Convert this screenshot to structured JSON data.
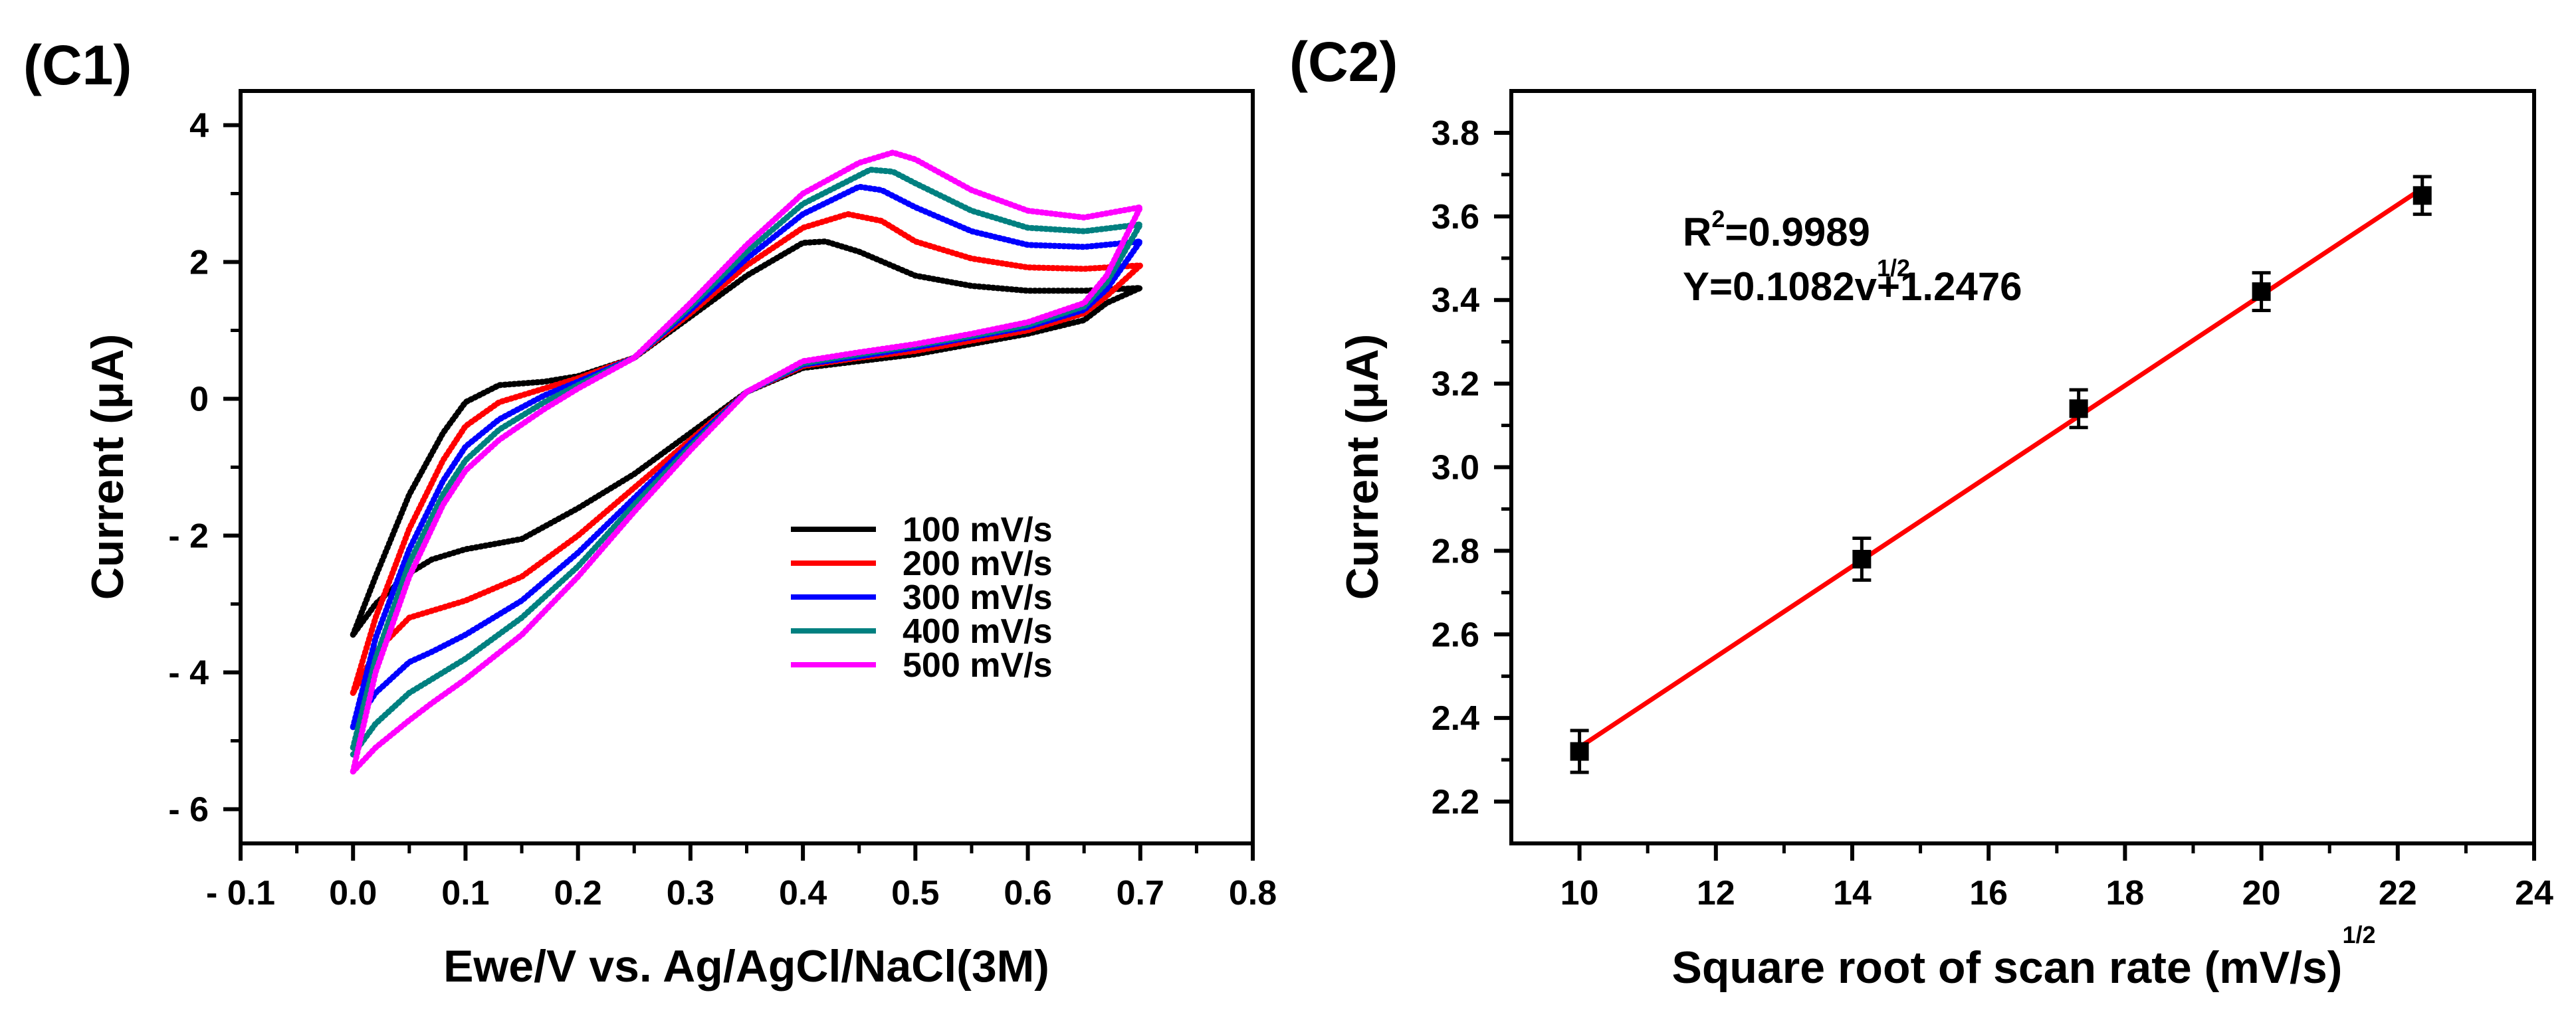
{
  "panels": {
    "c1_label": "(C1)",
    "c2_label": "(C2)"
  },
  "chart_data": [
    {
      "type": "line",
      "title": "",
      "xlabel": "Ewe/V vs. Ag/AgCl/NaCl(3M)",
      "ylabel": "Current (μA)",
      "xlim": [
        -0.1,
        0.8
      ],
      "ylim": [
        -6.5,
        4.5
      ],
      "xticks": [
        -0.1,
        0.0,
        0.1,
        0.2,
        0.3,
        0.4,
        0.5,
        0.6,
        0.7,
        0.8
      ],
      "xtick_labels": [
        "- 0.1",
        "0.0",
        "0.1",
        "0.2",
        "0.3",
        "0.4",
        "0.5",
        "0.6",
        "0.7",
        "0.8"
      ],
      "yticks": [
        -6,
        -4,
        -2,
        0,
        2,
        4
      ],
      "ytick_labels": [
        "- 6",
        "- 4",
        "- 2",
        "0",
        "2",
        "4"
      ],
      "grid": false,
      "legend_position": "lower-right",
      "series": [
        {
          "name": "100 mV/s",
          "color": "#000000",
          "anodic": [
            [
              0.0,
              -3.45
            ],
            [
              0.02,
              -2.6
            ],
            [
              0.05,
              -1.4
            ],
            [
              0.08,
              -0.5
            ],
            [
              0.1,
              -0.05
            ],
            [
              0.13,
              0.2
            ],
            [
              0.17,
              0.25
            ],
            [
              0.2,
              0.33
            ],
            [
              0.25,
              0.6
            ],
            [
              0.3,
              1.2
            ],
            [
              0.35,
              1.8
            ],
            [
              0.4,
              2.28
            ],
            [
              0.42,
              2.3
            ],
            [
              0.45,
              2.15
            ],
            [
              0.5,
              1.8
            ],
            [
              0.55,
              1.65
            ],
            [
              0.6,
              1.58
            ],
            [
              0.65,
              1.58
            ],
            [
              0.7,
              1.62
            ]
          ],
          "cathodic": [
            [
              0.7,
              2.1
            ],
            [
              0.67,
              1.4
            ],
            [
              0.65,
              1.15
            ],
            [
              0.6,
              0.95
            ],
            [
              0.55,
              0.8
            ],
            [
              0.5,
              0.65
            ],
            [
              0.45,
              0.55
            ],
            [
              0.4,
              0.45
            ],
            [
              0.35,
              0.1
            ],
            [
              0.3,
              -0.5
            ],
            [
              0.25,
              -1.1
            ],
            [
              0.2,
              -1.6
            ],
            [
              0.15,
              -2.05
            ],
            [
              0.1,
              -2.2
            ],
            [
              0.07,
              -2.35
            ],
            [
              0.05,
              -2.55
            ],
            [
              0.02,
              -3.0
            ],
            [
              0.0,
              -3.45
            ]
          ]
        },
        {
          "name": "200 mV/s",
          "color": "#ff0000",
          "anodic": [
            [
              0.0,
              -4.3
            ],
            [
              0.02,
              -3.2
            ],
            [
              0.05,
              -1.9
            ],
            [
              0.08,
              -0.9
            ],
            [
              0.1,
              -0.4
            ],
            [
              0.13,
              -0.05
            ],
            [
              0.17,
              0.15
            ],
            [
              0.2,
              0.3
            ],
            [
              0.25,
              0.6
            ],
            [
              0.3,
              1.25
            ],
            [
              0.35,
              1.95
            ],
            [
              0.4,
              2.5
            ],
            [
              0.44,
              2.7
            ],
            [
              0.47,
              2.6
            ],
            [
              0.5,
              2.3
            ],
            [
              0.55,
              2.05
            ],
            [
              0.6,
              1.92
            ],
            [
              0.65,
              1.9
            ],
            [
              0.7,
              1.95
            ]
          ],
          "cathodic": [
            [
              0.7,
              2.2
            ],
            [
              0.67,
              1.5
            ],
            [
              0.65,
              1.25
            ],
            [
              0.6,
              1.0
            ],
            [
              0.55,
              0.85
            ],
            [
              0.5,
              0.7
            ],
            [
              0.45,
              0.6
            ],
            [
              0.4,
              0.48
            ],
            [
              0.35,
              0.1
            ],
            [
              0.3,
              -0.6
            ],
            [
              0.25,
              -1.3
            ],
            [
              0.2,
              -2.0
            ],
            [
              0.15,
              -2.6
            ],
            [
              0.1,
              -2.95
            ],
            [
              0.07,
              -3.1
            ],
            [
              0.05,
              -3.2
            ],
            [
              0.02,
              -3.7
            ],
            [
              0.0,
              -4.3
            ]
          ]
        },
        {
          "name": "300 mV/s",
          "color": "#0000ff",
          "anodic": [
            [
              0.0,
              -4.8
            ],
            [
              0.02,
              -3.5
            ],
            [
              0.05,
              -2.2
            ],
            [
              0.08,
              -1.2
            ],
            [
              0.1,
              -0.7
            ],
            [
              0.13,
              -0.3
            ],
            [
              0.17,
              0.05
            ],
            [
              0.2,
              0.25
            ],
            [
              0.25,
              0.6
            ],
            [
              0.3,
              1.3
            ],
            [
              0.35,
              2.05
            ],
            [
              0.4,
              2.7
            ],
            [
              0.45,
              3.1
            ],
            [
              0.47,
              3.05
            ],
            [
              0.5,
              2.8
            ],
            [
              0.55,
              2.45
            ],
            [
              0.6,
              2.25
            ],
            [
              0.65,
              2.22
            ],
            [
              0.7,
              2.3
            ]
          ],
          "cathodic": [
            [
              0.7,
              2.5
            ],
            [
              0.67,
              1.6
            ],
            [
              0.65,
              1.3
            ],
            [
              0.6,
              1.05
            ],
            [
              0.55,
              0.9
            ],
            [
              0.5,
              0.75
            ],
            [
              0.45,
              0.62
            ],
            [
              0.4,
              0.5
            ],
            [
              0.35,
              0.1
            ],
            [
              0.3,
              -0.65
            ],
            [
              0.25,
              -1.45
            ],
            [
              0.2,
              -2.25
            ],
            [
              0.15,
              -2.95
            ],
            [
              0.1,
              -3.45
            ],
            [
              0.07,
              -3.7
            ],
            [
              0.05,
              -3.85
            ],
            [
              0.02,
              -4.3
            ],
            [
              0.0,
              -4.8
            ]
          ]
        },
        {
          "name": "400 mV/s",
          "color": "#008080",
          "anodic": [
            [
              0.0,
              -5.1
            ],
            [
              0.02,
              -3.8
            ],
            [
              0.05,
              -2.4
            ],
            [
              0.08,
              -1.4
            ],
            [
              0.1,
              -0.9
            ],
            [
              0.13,
              -0.45
            ],
            [
              0.17,
              -0.05
            ],
            [
              0.2,
              0.2
            ],
            [
              0.25,
              0.6
            ],
            [
              0.3,
              1.35
            ],
            [
              0.35,
              2.15
            ],
            [
              0.4,
              2.85
            ],
            [
              0.46,
              3.35
            ],
            [
              0.48,
              3.32
            ],
            [
              0.5,
              3.15
            ],
            [
              0.55,
              2.75
            ],
            [
              0.6,
              2.5
            ],
            [
              0.65,
              2.45
            ],
            [
              0.7,
              2.55
            ]
          ],
          "cathodic": [
            [
              0.7,
              2.7
            ],
            [
              0.67,
              1.7
            ],
            [
              0.65,
              1.35
            ],
            [
              0.6,
              1.08
            ],
            [
              0.55,
              0.92
            ],
            [
              0.5,
              0.78
            ],
            [
              0.45,
              0.65
            ],
            [
              0.4,
              0.52
            ],
            [
              0.35,
              0.1
            ],
            [
              0.3,
              -0.7
            ],
            [
              0.25,
              -1.55
            ],
            [
              0.2,
              -2.45
            ],
            [
              0.15,
              -3.2
            ],
            [
              0.1,
              -3.8
            ],
            [
              0.07,
              -4.1
            ],
            [
              0.05,
              -4.3
            ],
            [
              0.02,
              -4.75
            ],
            [
              0.0,
              -5.2
            ]
          ]
        },
        {
          "name": "500 mV/s",
          "color": "#ff00ff",
          "anodic": [
            [
              0.0,
              -5.45
            ],
            [
              0.02,
              -4.0
            ],
            [
              0.05,
              -2.6
            ],
            [
              0.08,
              -1.55
            ],
            [
              0.1,
              -1.05
            ],
            [
              0.13,
              -0.6
            ],
            [
              0.17,
              -0.15
            ],
            [
              0.2,
              0.15
            ],
            [
              0.25,
              0.6
            ],
            [
              0.3,
              1.4
            ],
            [
              0.35,
              2.25
            ],
            [
              0.4,
              3.0
            ],
            [
              0.45,
              3.45
            ],
            [
              0.48,
              3.6
            ],
            [
              0.5,
              3.5
            ],
            [
              0.55,
              3.05
            ],
            [
              0.6,
              2.75
            ],
            [
              0.65,
              2.65
            ],
            [
              0.7,
              2.8
            ]
          ],
          "cathodic": [
            [
              0.7,
              2.85
            ],
            [
              0.67,
              1.8
            ],
            [
              0.65,
              1.4
            ],
            [
              0.6,
              1.12
            ],
            [
              0.55,
              0.95
            ],
            [
              0.5,
              0.8
            ],
            [
              0.45,
              0.68
            ],
            [
              0.4,
              0.55
            ],
            [
              0.35,
              0.1
            ],
            [
              0.3,
              -0.75
            ],
            [
              0.25,
              -1.65
            ],
            [
              0.2,
              -2.6
            ],
            [
              0.15,
              -3.45
            ],
            [
              0.1,
              -4.1
            ],
            [
              0.07,
              -4.45
            ],
            [
              0.05,
              -4.7
            ],
            [
              0.02,
              -5.1
            ],
            [
              0.0,
              -5.45
            ]
          ]
        }
      ]
    },
    {
      "type": "scatter",
      "title": "",
      "xlabel": "Square root of scan rate (mV/s)",
      "xlabel_superscript": "1/2",
      "ylabel": "Current (μA)",
      "xlim": [
        9,
        24
      ],
      "ylim": [
        2.1,
        3.9
      ],
      "xticks": [
        10,
        12,
        14,
        16,
        18,
        20,
        22,
        24
      ],
      "xtick_labels": [
        "10",
        "12",
        "14",
        "16",
        "18",
        "20",
        "22",
        "24"
      ],
      "yticks": [
        2.2,
        2.4,
        2.6,
        2.8,
        3.0,
        3.2,
        3.4,
        3.6,
        3.8
      ],
      "ytick_labels": [
        "2.2",
        "2.4",
        "2.6",
        "2.8",
        "3.0",
        "3.2",
        "3.4",
        "3.6",
        "3.8"
      ],
      "grid": false,
      "points": {
        "x": [
          10.0,
          14.14,
          17.32,
          20.0,
          22.36
        ],
        "y": [
          2.32,
          2.78,
          3.14,
          3.42,
          3.65
        ],
        "err": [
          0.05,
          0.05,
          0.045,
          0.045,
          0.045
        ],
        "color": "#000000"
      },
      "fit": {
        "x": [
          10.0,
          22.36
        ],
        "y": [
          2.33,
          3.667
        ],
        "color": "#ff0000"
      },
      "annotation": {
        "r2_prefix": "R",
        "r2_sup": "2",
        "r2_value": "=0.9989",
        "eq_prefix": "Y=0.1082v",
        "eq_sup": "1/2",
        "eq_suffix": "+1.2476"
      }
    }
  ]
}
